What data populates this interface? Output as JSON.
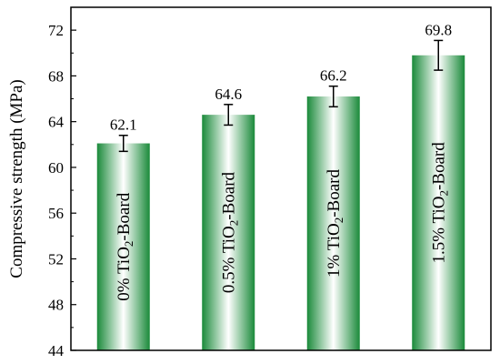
{
  "chart_data": {
    "type": "bar",
    "ylabel": "Compressive strength (MPa)",
    "xlabel": "",
    "ylim": [
      44,
      74
    ],
    "yticks": [
      44,
      48,
      52,
      56,
      60,
      64,
      68,
      72
    ],
    "grid": false,
    "categories": [
      {
        "pre": "0% TiO",
        "sub": "2",
        "post": "-Board"
      },
      {
        "pre": "0.5% TiO",
        "sub": "2",
        "post": "-Board"
      },
      {
        "pre": "1% TiO",
        "sub": "2",
        "post": "-Board"
      },
      {
        "pre": "1.5% TiO",
        "sub": "2",
        "post": "-Board"
      }
    ],
    "values": [
      62.1,
      64.6,
      66.2,
      69.8
    ],
    "value_labels": [
      "62.1",
      "64.6",
      "66.2",
      "69.8"
    ],
    "errors": [
      0.7,
      0.9,
      0.9,
      1.3
    ],
    "bar_color": "#1a8a3a",
    "bar_highlight": "#ffffff"
  }
}
